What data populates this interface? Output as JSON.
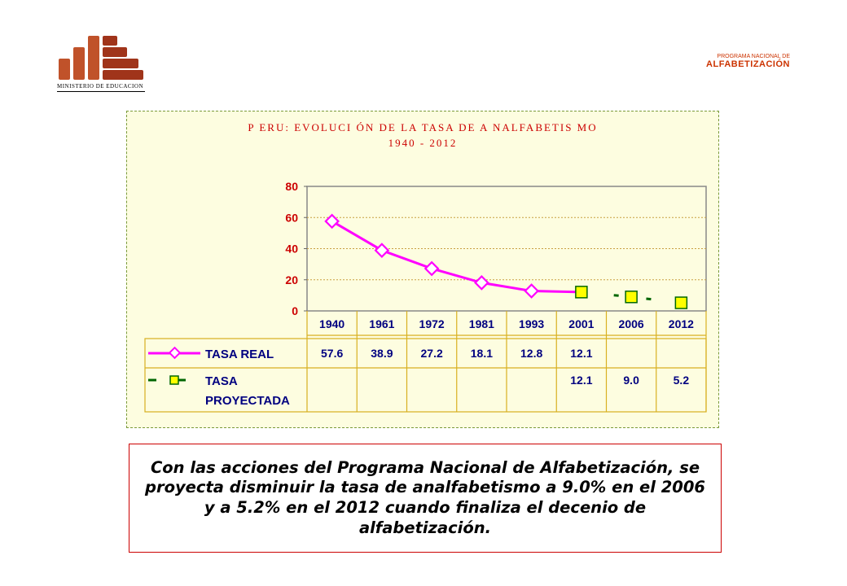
{
  "header": {
    "ministry_caption": "MINISTERIO DE EDUCACION",
    "program_line1": "PROGRAMA NACIONAL DE",
    "program_line2": "ALFABETIZACIÓN"
  },
  "colors": {
    "brand_brown": "#c0522a",
    "accent_red": "#cc3300",
    "panel_bg": "#fdfde0",
    "real_series": "#ff00ff",
    "projected_series": "#006600",
    "projected_marker": "#ffff00"
  },
  "chart_data": {
    "type": "line",
    "title": "P ERU: EVOLUCI ÓN DE LA TASA DE A NALFABETIS MO",
    "subtitle": "1940 - 2012",
    "categories": [
      "1940",
      "1961",
      "1972",
      "1981",
      "1993",
      "2001",
      "2006",
      "2012"
    ],
    "ylim": [
      0,
      80
    ],
    "yticks": [
      "0",
      "20",
      "40",
      "60",
      "80"
    ],
    "grid": true,
    "legend_position": "bottom data table",
    "series": [
      {
        "name": "TASA REAL",
        "values": [
          57.6,
          38.9,
          27.2,
          18.1,
          12.8,
          12.1,
          null,
          null
        ],
        "labels": [
          "57.6",
          "38.9",
          "27.2",
          "18.1",
          "12.8",
          "12.1",
          "",
          ""
        ],
        "line": "solid",
        "marker": "diamond"
      },
      {
        "name": "TASA PROYECTADA",
        "name_line1": "TASA",
        "name_line2": "PROYECTADA",
        "values": [
          null,
          null,
          null,
          null,
          null,
          12.1,
          9.0,
          5.2
        ],
        "labels": [
          "",
          "",
          "",
          "",
          "",
          "12.1",
          "9.0",
          "5.2"
        ],
        "line": "dashed",
        "marker": "square"
      }
    ]
  },
  "note": {
    "text": "Con las acciones del Programa Nacional de Alfabetización, se proyecta disminuir la tasa de analfabetismo a 9.0% en el 2006 y a 5.2% en el 2012 cuando finaliza el decenio de alfabetización."
  }
}
